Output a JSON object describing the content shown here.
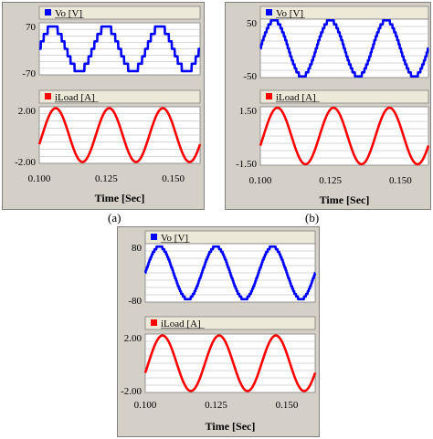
{
  "chart_data": [
    {
      "type": "line",
      "panel": "a",
      "xlabel": "Time [Sec]",
      "xticks": [
        "0.100",
        "0.125",
        "0.150"
      ],
      "xlim": [
        0.1,
        0.16
      ],
      "subplots": [
        {
          "series_name": "Vo [V]",
          "color": "#0000ff",
          "ylim": [
            -70,
            70
          ],
          "yticks": [
            "70",
            "-70"
          ],
          "amplitude": 60,
          "waveform": "multilevel-stepped",
          "levels": 7,
          "period": 0.02,
          "phase_shift_deg": 0
        },
        {
          "series_name": "iLoad [A]",
          "color": "#ff0000",
          "ylim": [
            -2.0,
            2.0
          ],
          "yticks": [
            "2.00",
            "-2.00"
          ],
          "amplitude": 1.9,
          "waveform": "sinusoid",
          "period": 0.02,
          "phase_shift_deg": -20
        }
      ]
    },
    {
      "type": "line",
      "panel": "b",
      "xlabel": "Time [Sec]",
      "xticks": [
        "0.100",
        "0.125",
        "0.150"
      ],
      "xlim": [
        0.1,
        0.16
      ],
      "subplots": [
        {
          "series_name": "Vo [V]",
          "color": "#0000ff",
          "ylim": [
            -50,
            50
          ],
          "yticks": [
            "50",
            "-50"
          ],
          "amplitude": 48,
          "waveform": "multilevel-stepped",
          "levels": 15,
          "period": 0.02,
          "phase_shift_deg": 0
        },
        {
          "series_name": "iLoad [A]",
          "color": "#ff0000",
          "ylim": [
            -1.5,
            1.5
          ],
          "yticks": [
            "1.50",
            "-1.50"
          ],
          "amplitude": 1.45,
          "waveform": "sinusoid",
          "period": 0.02,
          "phase_shift_deg": -20
        }
      ]
    },
    {
      "type": "line",
      "panel": "",
      "xlabel": "Time [Sec]",
      "xticks": [
        "0.100",
        "0.125",
        "0.150"
      ],
      "xlim": [
        0.1,
        0.16
      ],
      "subplots": [
        {
          "series_name": "Vo [V]",
          "color": "#0000ff",
          "ylim": [
            -80,
            80
          ],
          "yticks": [
            "80",
            "-80"
          ],
          "amplitude": 72,
          "waveform": "multilevel-stepped",
          "levels": 21,
          "period": 0.02,
          "phase_shift_deg": 0
        },
        {
          "series_name": "iLoad [A]",
          "color": "#ff0000",
          "ylim": [
            -2.0,
            2.0
          ],
          "yticks": [
            "2.00",
            "-2.00"
          ],
          "amplitude": 1.9,
          "waveform": "sinusoid",
          "period": 0.02,
          "phase_shift_deg": -20
        }
      ]
    }
  ],
  "captions": {
    "a": "(a)",
    "b": "(b)"
  }
}
